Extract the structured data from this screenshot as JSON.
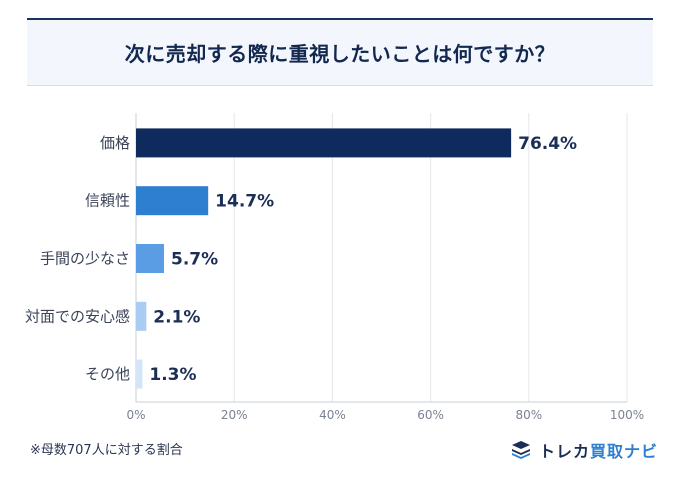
{
  "title": "次に売却する際に重視したいことは何ですか？",
  "note": "※母数707人に対する割合",
  "brand": {
    "part1": "トレカ",
    "part2": "買取ナビ",
    "icon": "stacked-cards-logo-icon"
  },
  "colors": {
    "title_border": "#16335f",
    "bar_colors": [
      "#0f2a5c",
      "#2f7fd1",
      "#5a9de4",
      "#a9ccf2",
      "#d4e5f8"
    ],
    "label_color": "#1b2e55"
  },
  "chart_data": {
    "type": "bar",
    "orientation": "horizontal",
    "categories": [
      "価格",
      "信頼性",
      "手間の少なさ",
      "対面での安心感",
      "その他"
    ],
    "values": [
      76.4,
      14.7,
      5.7,
      2.1,
      1.3
    ],
    "value_labels": [
      "76.4%",
      "14.7%",
      "5.7%",
      "2.1%",
      "1.3%"
    ],
    "xlim": [
      0,
      100
    ],
    "xticks": [
      "0%",
      "20%",
      "40%",
      "60%",
      "80%",
      "100%"
    ],
    "grid": true,
    "title": "次に売却する際に重視したいことは何ですか？"
  }
}
